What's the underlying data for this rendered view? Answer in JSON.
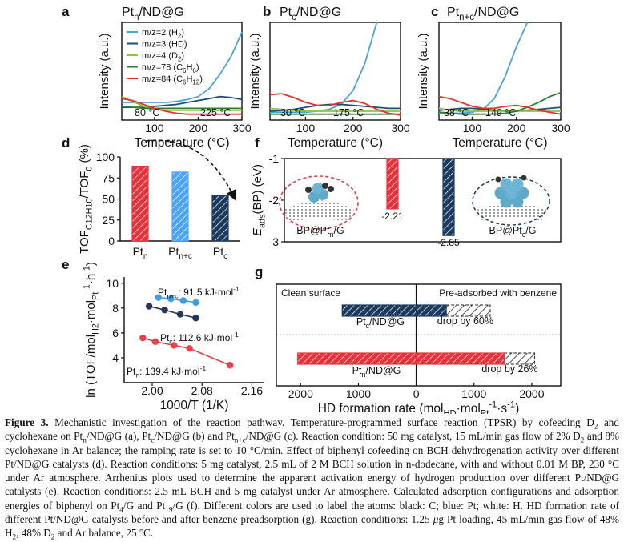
{
  "chart_data": [
    {
      "label": "a",
      "type": "line",
      "title": [
        "Pt",
        {
          "sub": "n"
        },
        "/ND@G"
      ],
      "xlabel": "Temperature (°C)",
      "ylabel": "Intensity (a.u.)",
      "x": [
        25,
        50,
        75,
        100,
        125,
        150,
        175,
        200,
        225,
        250,
        275,
        300
      ],
      "xlim": [
        25,
        300
      ],
      "xticks": [
        100,
        200,
        300
      ],
      "ylim": [
        0,
        100
      ],
      "series": [
        {
          "name": [
            "m/z=2 (H",
            {
              "sub": "2"
            },
            ")"
          ],
          "color": "#4ba3d9",
          "values": [
            18,
            18,
            18,
            18,
            18,
            19,
            21,
            24,
            32,
            47,
            65,
            90
          ]
        },
        {
          "name": "m/z=3 (HD)",
          "color": "#1f4e79",
          "values": [
            13,
            13,
            13,
            14,
            15,
            16,
            18,
            20,
            22,
            24,
            23,
            21
          ]
        },
        {
          "name": [
            "m/z=4 (D",
            {
              "sub": "2"
            },
            ")"
          ],
          "color": "#8cc63f",
          "values": [
            24,
            19,
            14,
            11,
            10,
            10,
            10,
            10,
            10,
            10,
            10,
            10
          ]
        },
        {
          "name": [
            "m/z=78 (C",
            {
              "sub": "6"
            },
            "H",
            {
              "sub": "6"
            },
            ")"
          ],
          "color": "#2e7d32",
          "values": [
            14,
            13,
            12,
            12,
            12,
            12,
            12,
            12,
            12,
            12,
            12,
            12
          ]
        },
        {
          "name": [
            "m/z=84 (C",
            {
              "sub": "6"
            },
            "H",
            {
              "sub": "12"
            },
            ")"
          ],
          "color": "#e8312f",
          "values": [
            22,
            20,
            16,
            12,
            9,
            7,
            6,
            6,
            6,
            6,
            6,
            6
          ]
        }
      ],
      "annotations": [
        "80 °C",
        "225 °C"
      ]
    },
    {
      "label": "b",
      "type": "line",
      "title": [
        "Pt",
        {
          "sub": "c"
        },
        "/ND@G"
      ],
      "xlabel": "Temperature (°C)",
      "ylabel": "Intensity (a.u.)",
      "x": [
        25,
        50,
        75,
        100,
        125,
        150,
        175,
        200,
        225,
        250,
        275,
        300
      ],
      "xlim": [
        25,
        300
      ],
      "xticks": [
        100,
        200,
        300
      ],
      "ylim": [
        0,
        100
      ],
      "series": [
        {
          "color": "#4ba3d9",
          "values": [
            8,
            8,
            8,
            8,
            9,
            11,
            16,
            30,
            58,
            100,
            null,
            null
          ]
        },
        {
          "color": "#1f4e79",
          "values": [
            9,
            10,
            11,
            13,
            15,
            16,
            16,
            15,
            14,
            13,
            12,
            12
          ]
        },
        {
          "color": "#8cc63f",
          "values": [
            12,
            11,
            10,
            9,
            9,
            9,
            9,
            9,
            9,
            9,
            9,
            9
          ]
        },
        {
          "color": "#2e7d32",
          "values": [
            6,
            6,
            6,
            6,
            6,
            6,
            6,
            6,
            6,
            6,
            6,
            6
          ]
        },
        {
          "color": "#e8312f",
          "values": [
            26,
            27,
            23,
            18,
            15,
            15,
            18,
            20,
            17,
            11,
            7,
            5
          ]
        }
      ],
      "annotations": [
        "30 °C",
        "175 °C"
      ]
    },
    {
      "label": "c",
      "type": "line",
      "title": [
        "Pt",
        {
          "sub": "n+c"
        },
        "/ND@G"
      ],
      "xlabel": "Temperature (°C)",
      "ylabel": "Intensity (a.u.)",
      "x": [
        25,
        50,
        75,
        100,
        125,
        150,
        175,
        200,
        225,
        250,
        275,
        300
      ],
      "xlim": [
        25,
        300
      ],
      "xticks": [
        100,
        200,
        300
      ],
      "ylim": [
        0,
        100
      ],
      "series": [
        {
          "color": "#4ba3d9",
          "values": [
            7,
            7,
            7,
            8,
            11,
            22,
            45,
            75,
            100,
            null,
            null,
            null
          ]
        },
        {
          "color": "#1f4e79",
          "values": [
            10,
            11,
            12,
            12,
            11,
            10,
            9,
            9,
            10,
            11,
            12,
            13
          ]
        },
        {
          "color": "#8cc63f",
          "values": [
            12,
            10,
            9,
            9,
            9,
            9,
            9,
            9,
            9,
            9,
            9,
            9
          ]
        },
        {
          "color": "#2e7d32",
          "values": [
            8,
            7,
            6,
            6,
            6,
            6,
            7,
            9,
            13,
            18,
            24,
            28
          ]
        },
        {
          "color": "#e8312f",
          "values": [
            24,
            22,
            18,
            14,
            12,
            12,
            14,
            15,
            13,
            10,
            8,
            6
          ]
        }
      ],
      "annotations": [
        "38 °C",
        "149 °C"
      ]
    },
    {
      "label": "d",
      "type": "bar",
      "ylabel": [
        "TOF",
        {
          "sub": "C12H10"
        },
        "/TOF",
        {
          "sub": "0"
        },
        " (%)"
      ],
      "categories": [
        [
          "Pt",
          {
            "sub": "n"
          }
        ],
        [
          "Pt",
          {
            "sub": "n+c"
          }
        ],
        [
          "Pt",
          {
            "sub": "c"
          }
        ]
      ],
      "values": [
        89,
        82,
        54
      ],
      "colors": [
        "#e5323b",
        "#4aa3ff",
        "#1c3a5e"
      ],
      "ylim": [
        0,
        100
      ],
      "yticks": [
        0,
        25,
        50,
        75,
        100
      ]
    },
    {
      "label": "e",
      "type": "scatter",
      "xlabel": "1000/T (1/K)",
      "ylabel": [
        "ln (TOF/mol",
        {
          "sub": "H2"
        },
        "·mol",
        {
          "sub": "Pt"
        },
        {
          "sup": "-1"
        },
        "·h",
        {
          "sup": "-1"
        },
        ")"
      ],
      "xlim": [
        1.955,
        2.18
      ],
      "xticks": [
        {
          "value": 2,
          "label": "2.00"
        },
        {
          "value": 2.08,
          "label": "2.08"
        },
        {
          "value": 2.16,
          "label": "2.16"
        }
      ],
      "ylim": [
        2,
        10.5
      ],
      "yticks": [
        4,
        6,
        8,
        10
      ],
      "series": [
        {
          "name": [
            "Pt",
            {
              "sub": "n+c"
            },
            ": 91.5 kJ·mol",
            {
              "sup": "-1"
            }
          ],
          "color": "#3a9ee8",
          "x": [
            2.01,
            2.03,
            2.05,
            2.07
          ],
          "values": [
            8.85,
            8.75,
            8.6,
            8.45
          ]
        },
        {
          "name": [
            "Pt",
            {
              "sub": "c"
            },
            ": 112.6 kJ·mol",
            {
              "sup": "-1"
            }
          ],
          "color": "#24365a",
          "x": [
            1.995,
            2.02,
            2.045,
            2.07
          ],
          "values": [
            8.15,
            7.85,
            7.5,
            7.2
          ]
        },
        {
          "name": [
            "Pt",
            {
              "sub": "n"
            },
            ": 139.4 kJ·mol",
            {
              "sup": "-1"
            }
          ],
          "color": "#e8404a",
          "x": [
            1.985,
            2.005,
            2.035,
            2.06,
            2.125
          ],
          "values": [
            5.6,
            5.3,
            5.0,
            4.75,
            3.4
          ]
        }
      ]
    },
    {
      "label": "f",
      "type": "bar",
      "ylabel": [
        {
          "italic": "E"
        },
        {
          "sub": "ads"
        },
        "(BP) (eV)"
      ],
      "values": [
        -2.21,
        -2.85
      ],
      "colors": [
        "#e5323b",
        "#1c3a5e"
      ],
      "ylim": [
        -3,
        -1
      ],
      "yticks": [
        -1,
        -2,
        -3
      ],
      "annotations": [
        [
          "BP@Pt",
          {
            "sub": "n"
          },
          "/G"
        ],
        [
          "BP@Pt",
          {
            "sub": "c"
          },
          "/G"
        ]
      ]
    },
    {
      "label": "g",
      "type": "bar",
      "orientation": "horizontal",
      "xlabel": [
        "HD formation rate (mol",
        {
          "sub": "HD"
        },
        "·mol",
        {
          "sub": "Pt"
        },
        {
          "sup": "-1"
        },
        "·s",
        {
          "sup": "-1"
        },
        ")"
      ],
      "categories": [
        [
          "Pt",
          {
            "sub": "c"
          },
          "/ND@G"
        ],
        [
          "Pt",
          {
            "sub": "n"
          },
          "/ND@G"
        ]
      ],
      "colors": [
        "#1c3a5e",
        "#e5323b"
      ],
      "series": [
        {
          "name": "Clean surface",
          "side": "left",
          "values": [
            1280,
            2050
          ]
        },
        {
          "name": "Pre-adsorbed with benzene",
          "side": "right",
          "values": [
            520,
            1520
          ]
        }
      ],
      "annotations": [
        "drop by 60%",
        "drop by 26%"
      ],
      "xlim": [
        -2420,
        2500
      ],
      "xticks": [
        {
          "value": -2000,
          "label": "2000"
        },
        {
          "value": -1000,
          "label": "1000"
        },
        0,
        1000,
        2000
      ]
    }
  ],
  "caption": [
    {
      "bold": "Figure 3."
    },
    " Mechanistic investigation of the reaction pathway. Temperature-programmed surface reaction (TPSR) by cofeeding D",
    {
      "sub": "2"
    },
    " and cyclohexane on Pt",
    {
      "sub": "n"
    },
    "/ND@G (a), Pt",
    {
      "sub": "c"
    },
    "/ND@G (b) and Pt",
    {
      "sub": "n+c"
    },
    "/ND@G (c). Reaction condition: 50 mg catalyst, 15 mL/min gas flow of 2% D",
    {
      "sub": "2"
    },
    " and 8% cyclohexane in Ar balance; the ramping rate is set to 10 °C/min. Effect of biphenyl cofeeding on BCH dehydrogenation activity over different Pt/ND@G catalysts (d). Reaction conditions: 5 mg catalyst, 2.5 mL of 2 M BCH solution in n-dodecane, with and without 0.01 M BP, 230 °C under Ar atmosphere. Arrhenius plots used to determine the apparent activation energy of hydrogen production over different Pt/ND@G catalysts (e). Reaction conditions: 2.5 mL BCH and 5 mg catalyst under Ar atmosphere. Calculated adsorption configurations and adsorption energies of biphenyl on Pt",
    {
      "sub": "4"
    },
    "/G and Pt",
    {
      "sub": "19"
    },
    "/G (f). Different colors are used to label the atoms: black: C; blue: Pt; white: H. HD formation rate of different Pt/ND@G catalysts before and after benzene preadsorption (g). Reaction conditions: 1.25 ",
    {
      "italic": "μ"
    },
    "g Pt loading, 45 mL/min gas flow of 48% H",
    {
      "sub": "2"
    },
    ", 48% D",
    {
      "sub": "2"
    },
    " and Ar balance, 25 °C."
  ]
}
